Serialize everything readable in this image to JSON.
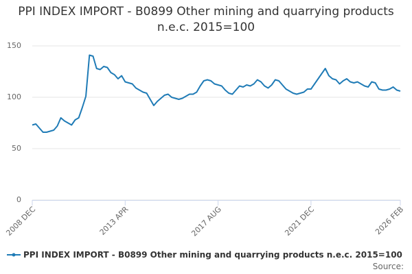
{
  "chart_data": {
    "type": "line",
    "title": "PPI INDEX IMPORT - B0899 Other mining and quarrying products n.e.c. 2015=100",
    "source": "Source:",
    "categories": [
      "2008 DEC",
      null,
      null,
      null,
      null,
      null,
      null,
      null,
      null,
      null,
      null,
      null,
      null,
      null,
      null,
      null,
      null,
      null,
      null,
      null,
      null,
      null,
      null,
      null,
      null,
      null,
      "2013 APR",
      null,
      null,
      null,
      null,
      null,
      null,
      null,
      null,
      null,
      null,
      null,
      null,
      null,
      null,
      null,
      null,
      null,
      null,
      null,
      null,
      null,
      null,
      null,
      null,
      null,
      "2017 AUG",
      null,
      null,
      null,
      null,
      null,
      null,
      null,
      null,
      null,
      null,
      null,
      null,
      null,
      null,
      null,
      null,
      null,
      null,
      null,
      null,
      null,
      null,
      null,
      null,
      null,
      "2021 DEC",
      null,
      null,
      null,
      null,
      null,
      null,
      null,
      null,
      null,
      null,
      null,
      null,
      null,
      null,
      null,
      null,
      null,
      null,
      null,
      null,
      null,
      null,
      null,
      null,
      "2026 FEB"
    ],
    "series": [
      {
        "name": "PPI INDEX IMPORT - B0899 Other mining and quarrying products n.e.c. 2015=100",
        "color": "#1f7bb6",
        "values": [
          73,
          74,
          70,
          66,
          66,
          67,
          68,
          72,
          80,
          77,
          75,
          73,
          78,
          80,
          90,
          101,
          141,
          140,
          128,
          127,
          130,
          129,
          124,
          122,
          118,
          121,
          115,
          114,
          113,
          109,
          107,
          105,
          104,
          98,
          92,
          96,
          99,
          102,
          103,
          100,
          99,
          98,
          99,
          101,
          103,
          103,
          105,
          111,
          116,
          117,
          116,
          113,
          112,
          111,
          107,
          104,
          103,
          107,
          111,
          110,
          112,
          111,
          113,
          117,
          115,
          111,
          109,
          112,
          117,
          116,
          112,
          108,
          106,
          104,
          103,
          104,
          105,
          108,
          108,
          113,
          118,
          123,
          128,
          121,
          118,
          117,
          113,
          116,
          118,
          115,
          114,
          115,
          113,
          111,
          110,
          115,
          114,
          108,
          107,
          107,
          108,
          110,
          107,
          106
        ]
      }
    ],
    "ylim": [
      0,
      150
    ],
    "yticks": [
      0,
      50,
      100,
      150
    ],
    "grid": true
  }
}
